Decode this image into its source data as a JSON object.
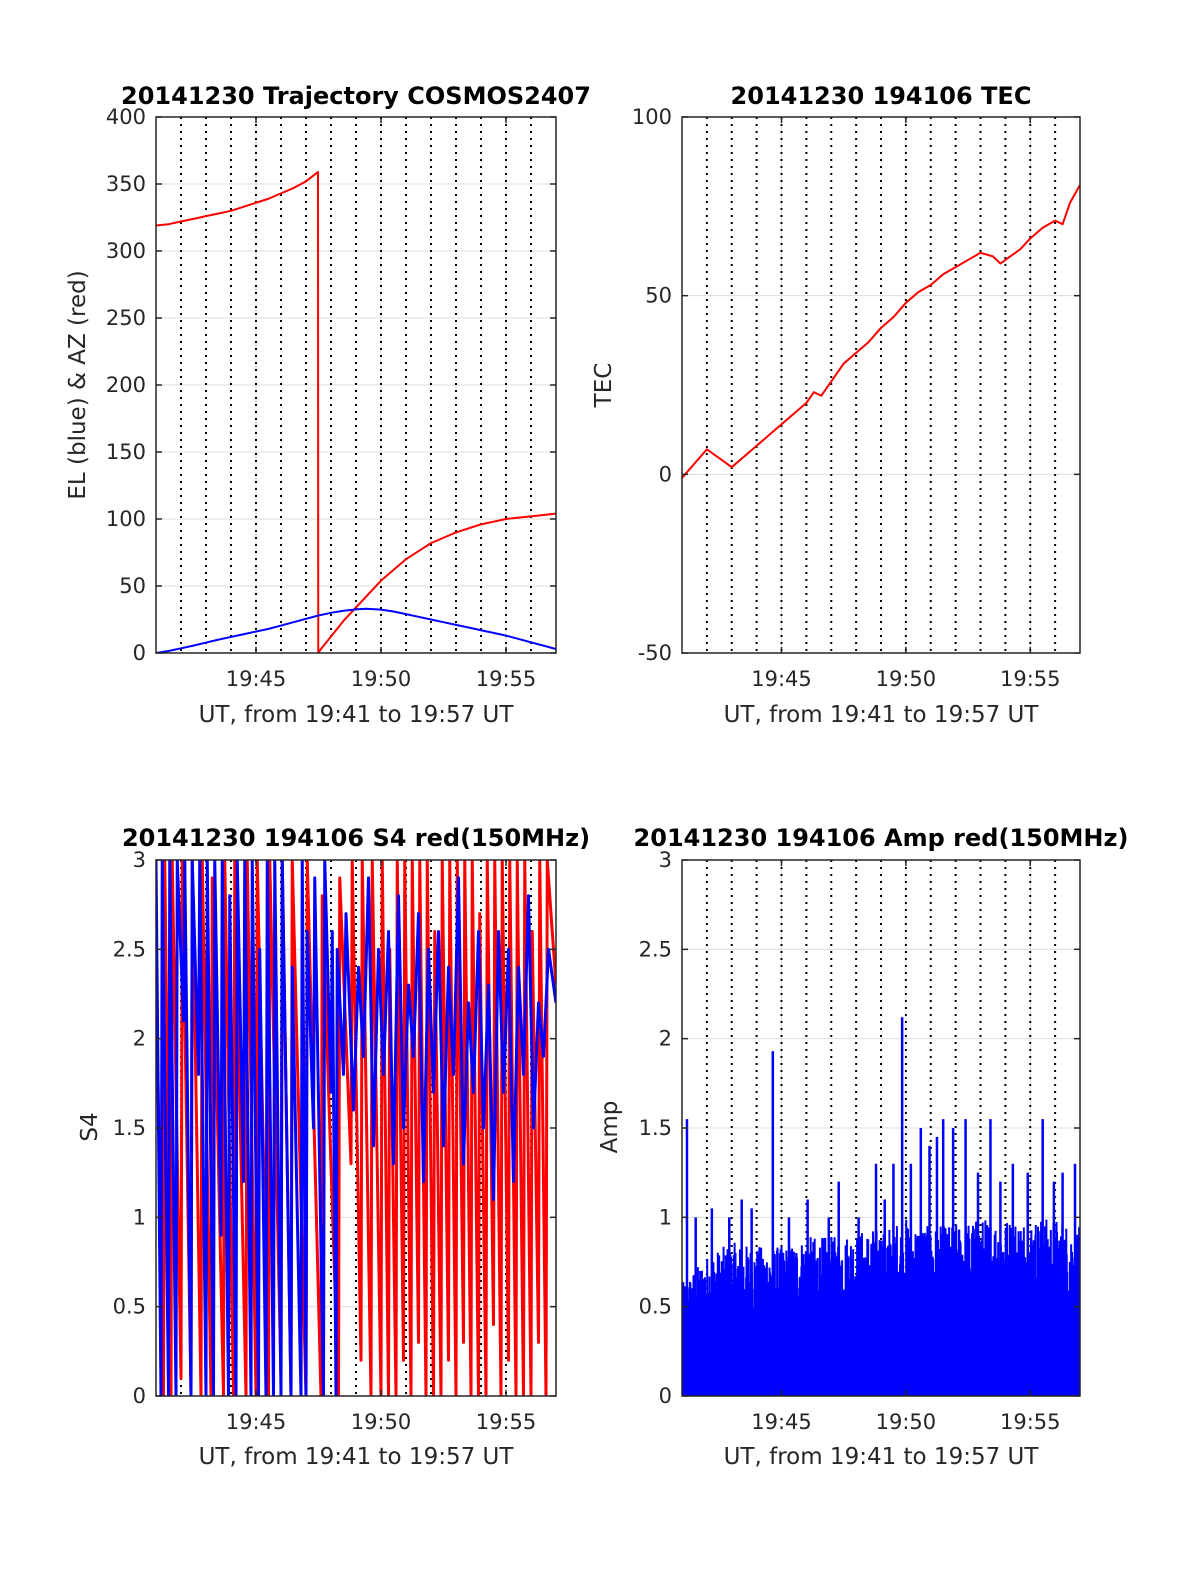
{
  "chart_data": [
    {
      "id": "trajectory",
      "type": "line",
      "title": "20141230 Trajectory COSMOS2407",
      "xlabel": "UT, from 19:41 to 19:57 UT",
      "ylabel": "EL (blue) & AZ (red)",
      "xlim": [
        41,
        57
      ],
      "ylim": [
        0,
        400
      ],
      "xticks": [
        {
          "v": 45,
          "label": "19:45"
        },
        {
          "v": 50,
          "label": "19:50"
        },
        {
          "v": 55,
          "label": "19:55"
        }
      ],
      "yticks": [
        {
          "v": 0,
          "label": "0"
        },
        {
          "v": 50,
          "label": "50"
        },
        {
          "v": 100,
          "label": "100"
        },
        {
          "v": 150,
          "label": "150"
        },
        {
          "v": 200,
          "label": "200"
        },
        {
          "v": 250,
          "label": "250"
        },
        {
          "v": 300,
          "label": "300"
        },
        {
          "v": 350,
          "label": "350"
        },
        {
          "v": 400,
          "label": "400"
        }
      ],
      "grid": true,
      "vlines": [
        42,
        43,
        44,
        45,
        46,
        47,
        48,
        49,
        50,
        51,
        52,
        53,
        54,
        55,
        56
      ],
      "series": [
        {
          "color": "#ff0000",
          "x": [
            41.0,
            41.5,
            42.0,
            42.5,
            43.0,
            43.5,
            44.0,
            44.5,
            45.0,
            45.5,
            46.0,
            46.5,
            47.0,
            47.48,
            47.49,
            47.6,
            47.9,
            48.2,
            48.5,
            49.0,
            49.5,
            50.0,
            50.5,
            51.0,
            51.5,
            52.0,
            52.5,
            53.0,
            53.5,
            54.0,
            54.5,
            55.0,
            55.5,
            56.0,
            56.5,
            57.0
          ],
          "y": [
            319,
            320,
            322,
            324,
            326,
            328,
            330,
            333,
            336,
            339,
            343,
            347,
            352,
            359,
            0,
            3,
            10,
            17,
            24,
            34,
            44,
            54,
            62,
            70,
            76,
            82,
            86,
            90,
            93,
            96,
            98,
            100,
            101,
            102,
            103,
            104
          ]
        },
        {
          "color": "#0000ff",
          "x": [
            41.0,
            41.5,
            42.0,
            42.5,
            43.0,
            43.5,
            44.0,
            44.5,
            45.0,
            45.5,
            46.0,
            46.5,
            47.0,
            47.5,
            48.0,
            48.5,
            49.0,
            49.4,
            50.0,
            50.5,
            51.0,
            51.5,
            52.0,
            52.5,
            53.0,
            53.5,
            54.0,
            54.5,
            55.0,
            55.5,
            56.0,
            56.5,
            57.0
          ],
          "y": [
            0,
            1.5,
            3.5,
            5.5,
            7.8,
            10,
            12,
            14,
            16,
            18,
            20.5,
            23,
            25.5,
            28,
            30,
            31.5,
            32.6,
            33,
            32.4,
            31,
            29,
            27,
            25,
            23,
            21,
            19,
            17,
            15,
            13,
            10.5,
            8,
            5.5,
            3
          ]
        }
      ]
    },
    {
      "id": "tec",
      "type": "line",
      "title": "20141230 194106 TEC",
      "xlabel": "UT, from 19:41 to 19:57 UT",
      "ylabel": "TEC",
      "xlim": [
        41,
        57
      ],
      "ylim": [
        -50,
        100
      ],
      "xticks": [
        {
          "v": 45,
          "label": "19:45"
        },
        {
          "v": 50,
          "label": "19:50"
        },
        {
          "v": 55,
          "label": "19:55"
        }
      ],
      "yticks": [
        {
          "v": -50,
          "label": "-50"
        },
        {
          "v": 0,
          "label": "0"
        },
        {
          "v": 50,
          "label": "50"
        },
        {
          "v": 100,
          "label": "100"
        }
      ],
      "grid": true,
      "vlines": [
        42,
        43,
        44,
        45,
        46,
        47,
        48,
        49,
        50,
        51,
        52,
        53,
        54,
        55,
        56
      ],
      "series": [
        {
          "color": "#ff0000",
          "x": [
            41.0,
            41.5,
            42.0,
            42.4,
            42.8,
            43.0,
            43.5,
            44.0,
            44.5,
            45.0,
            45.5,
            46.0,
            46.3,
            46.6,
            47.0,
            47.5,
            48.0,
            48.5,
            49.0,
            49.5,
            50.0,
            50.5,
            51.0,
            51.5,
            52.0,
            52.5,
            53.0,
            53.5,
            53.8,
            54.2,
            54.6,
            55.0,
            55.5,
            56.0,
            56.3,
            56.6,
            57.0
          ],
          "y": [
            -1,
            3,
            7,
            5,
            3,
            2,
            5,
            8,
            11,
            14,
            17,
            20,
            23,
            22,
            26,
            31,
            34,
            37,
            41,
            44,
            48,
            51,
            53,
            56,
            58,
            60,
            62,
            61,
            59,
            61,
            63,
            66,
            69,
            71,
            70,
            76,
            81
          ]
        }
      ]
    },
    {
      "id": "s4",
      "type": "line",
      "title": "20141230 194106 S4 red(150MHz)",
      "xlabel": "UT, from 19:41 to 19:57 UT",
      "ylabel": "S4",
      "xlim": [
        41,
        57
      ],
      "ylim": [
        0,
        3
      ],
      "xticks": [
        {
          "v": 45,
          "label": "19:45"
        },
        {
          "v": 50,
          "label": "19:50"
        },
        {
          "v": 55,
          "label": "19:55"
        }
      ],
      "yticks": [
        {
          "v": 0,
          "label": "0"
        },
        {
          "v": 0.5,
          "label": "0.5"
        },
        {
          "v": 1,
          "label": "1"
        },
        {
          "v": 1.5,
          "label": "1.5"
        },
        {
          "v": 2,
          "label": "2"
        },
        {
          "v": 2.5,
          "label": "2.5"
        },
        {
          "v": 3,
          "label": "3"
        }
      ],
      "grid": true,
      "vlines": [
        42,
        43,
        44,
        45,
        46,
        47,
        48,
        49,
        50,
        51,
        52,
        53,
        54,
        55,
        56
      ],
      "series": [
        {
          "color": "#ff0000",
          "x": [
            41.0,
            41.3,
            41.35,
            41.6,
            41.65,
            42.0,
            42.05,
            42.4,
            42.45,
            42.8,
            42.85,
            43.2,
            43.25,
            43.7,
            43.75,
            44.1,
            44.15,
            44.6,
            44.65,
            45.0,
            45.05,
            45.5,
            45.55,
            46.0,
            46.05,
            46.4,
            46.45,
            47.0,
            47.05,
            47.6,
            47.65,
            48.3,
            48.35,
            48.8,
            48.85,
            49.2,
            49.25,
            49.6,
            49.65,
            50.0,
            50.05,
            50.3,
            50.35,
            50.6,
            50.65,
            50.9,
            50.95,
            51.2,
            51.25,
            51.5,
            51.55,
            51.8,
            51.85,
            52.1,
            52.15,
            52.4,
            52.45,
            52.7,
            52.75,
            53.0,
            53.05,
            53.3,
            53.35,
            53.6,
            53.65,
            53.9,
            53.95,
            54.2,
            54.25,
            54.5,
            54.55,
            54.8,
            54.85,
            55.1,
            55.15,
            55.4,
            55.45,
            55.7,
            55.75,
            56.0,
            56.05,
            56.3,
            56.35,
            56.6,
            56.65,
            57.0
          ],
          "y": [
            2.4,
            0.0,
            3.0,
            0.0,
            3.0,
            0.1,
            3.0,
            0.0,
            3.0,
            0.0,
            3.0,
            0.0,
            2.9,
            0.0,
            3.0,
            0.0,
            3.0,
            0.0,
            3.0,
            0.0,
            3.0,
            0.0,
            3.0,
            0.1,
            3.0,
            0.0,
            3.0,
            0.0,
            3.0,
            0.0,
            2.8,
            0.0,
            2.9,
            1.3,
            3.0,
            0.2,
            3.0,
            0.0,
            3.0,
            0.0,
            3.0,
            0.0,
            2.5,
            0.0,
            3.0,
            0.2,
            3.0,
            0.0,
            3.0,
            0.3,
            3.0,
            0.0,
            3.0,
            0.0,
            2.6,
            0.0,
            3.0,
            0.2,
            3.0,
            0.0,
            3.0,
            0.3,
            3.0,
            0.0,
            3.0,
            0.0,
            2.7,
            0.0,
            3.0,
            0.4,
            3.0,
            0.0,
            3.0,
            0.2,
            3.0,
            0.0,
            3.0,
            0.0,
            3.0,
            0.0,
            2.6,
            0.3,
            3.0,
            0.0,
            3.0,
            2.3
          ]
        },
        {
          "color": "#0000ff",
          "x": [
            41.0,
            41.2,
            41.25,
            41.5,
            41.55,
            41.8,
            41.85,
            42.1,
            42.15,
            42.4,
            42.45,
            42.7,
            42.75,
            43.0,
            43.05,
            43.3,
            43.35,
            43.6,
            43.65,
            43.9,
            43.95,
            44.2,
            44.25,
            44.5,
            44.55,
            44.8,
            44.85,
            45.1,
            45.15,
            45.4,
            45.45,
            45.7,
            45.75,
            46.0,
            46.05,
            46.4,
            46.45,
            46.8,
            46.85,
            47.0,
            47.05,
            47.3,
            47.35,
            47.7,
            47.75,
            48.0,
            48.05,
            48.2,
            48.25,
            48.5,
            48.6,
            48.9,
            49.1,
            49.3,
            49.5,
            49.7,
            49.9,
            50.1,
            50.3,
            50.5,
            50.7,
            50.9,
            51.1,
            51.3,
            51.5,
            51.7,
            51.9,
            52.1,
            52.3,
            52.5,
            52.7,
            52.9,
            53.1,
            53.3,
            53.5,
            53.7,
            53.9,
            54.1,
            54.3,
            54.5,
            54.7,
            54.9,
            55.1,
            55.3,
            55.5,
            55.7,
            55.9,
            56.1,
            56.3,
            56.5,
            56.7,
            57.0
          ],
          "y": [
            3.0,
            0.0,
            3.0,
            0.0,
            3.0,
            0.0,
            3.0,
            2.1,
            3.0,
            0.0,
            3.0,
            1.8,
            3.0,
            0.0,
            3.0,
            0.0,
            3.0,
            0.9,
            3.0,
            0.0,
            2.8,
            0.0,
            3.0,
            1.2,
            3.0,
            0.0,
            3.0,
            0.0,
            2.5,
            0.0,
            3.0,
            0.0,
            3.0,
            0.0,
            3.0,
            0.0,
            2.4,
            0.0,
            3.0,
            0.0,
            2.6,
            1.5,
            2.9,
            0.0,
            3.0,
            1.7,
            2.6,
            0.0,
            2.5,
            1.8,
            2.7,
            1.6,
            2.4,
            1.9,
            2.9,
            1.4,
            2.5,
            1.8,
            2.6,
            1.3,
            2.8,
            1.5,
            2.3,
            1.9,
            2.7,
            1.2,
            2.5,
            1.7,
            2.6,
            1.4,
            2.4,
            1.8,
            2.9,
            1.3,
            2.2,
            1.7,
            2.6,
            1.5,
            2.3,
            1.1,
            2.6,
            1.7,
            2.5,
            1.2,
            2.4,
            1.8,
            2.8,
            1.5,
            2.2,
            1.9,
            2.5,
            2.2
          ]
        }
      ]
    },
    {
      "id": "amp",
      "type": "line",
      "title": "20141230 194106 Amp red(150MHz)",
      "xlabel": "UT, from 19:41 to 19:57 UT",
      "ylabel": "Amp",
      "xlim": [
        41,
        57
      ],
      "ylim": [
        0,
        3
      ],
      "xticks": [
        {
          "v": 45,
          "label": "19:45"
        },
        {
          "v": 50,
          "label": "19:50"
        },
        {
          "v": 55,
          "label": "19:55"
        }
      ],
      "yticks": [
        {
          "v": 0,
          "label": "0"
        },
        {
          "v": 0.5,
          "label": "0.5"
        },
        {
          "v": 1,
          "label": "1"
        },
        {
          "v": 1.5,
          "label": "1.5"
        },
        {
          "v": 2,
          "label": "2"
        },
        {
          "v": 2.5,
          "label": "2.5"
        },
        {
          "v": 3,
          "label": "3"
        }
      ],
      "grid": true,
      "vlines": [
        42,
        43,
        44,
        45,
        46,
        47,
        48,
        49,
        50,
        51,
        52,
        53,
        54,
        55,
        56
      ],
      "envelope": {
        "x": [
          41.0,
          42.0,
          43.0,
          44.0,
          45.0,
          46.0,
          47.0,
          48.0,
          49.0,
          50.0,
          51.0,
          52.0,
          53.0,
          54.0,
          55.0,
          56.0,
          57.0
        ],
        "y": [
          0.6,
          0.75,
          0.82,
          0.8,
          0.8,
          0.85,
          0.85,
          0.88,
          0.9,
          0.95,
          0.9,
          0.92,
          0.95,
          0.95,
          0.95,
          0.95,
          0.9
        ]
      },
      "spikes": {
        "x": [
          41.2,
          41.55,
          42.2,
          42.9,
          43.4,
          43.8,
          44.65,
          45.3,
          46.05,
          46.9,
          47.3,
          48.1,
          48.8,
          49.15,
          49.5,
          49.85,
          50.2,
          50.6,
          50.95,
          51.25,
          51.5,
          51.9,
          52.4,
          52.9,
          53.4,
          53.8,
          54.3,
          54.9,
          55.5,
          55.95,
          56.3,
          56.8
        ],
        "y": [
          1.55,
          1.0,
          1.05,
          1.0,
          1.1,
          1.05,
          1.93,
          1.0,
          1.1,
          1.0,
          1.2,
          1.0,
          1.3,
          1.1,
          1.3,
          2.12,
          1.3,
          1.5,
          1.4,
          1.45,
          1.55,
          1.5,
          1.55,
          1.25,
          1.55,
          1.2,
          1.3,
          1.25,
          1.55,
          1.2,
          1.25,
          1.3
        ]
      },
      "series": [
        {
          "color": "#0000ff"
        }
      ]
    }
  ]
}
